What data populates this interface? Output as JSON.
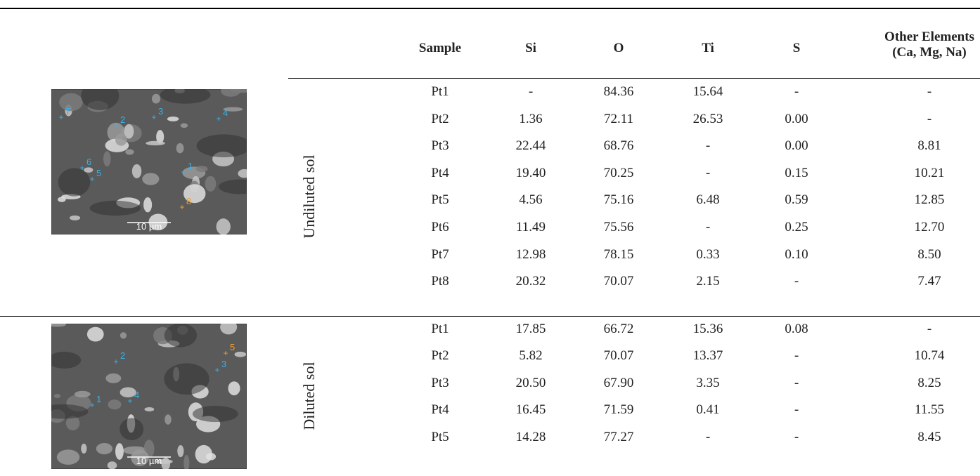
{
  "table": {
    "header": [
      "Sample",
      "Si",
      "O",
      "Ti",
      "S",
      "Other Elements (Ca, Mg, Na)"
    ],
    "groups": [
      {
        "label": "Undiluted sol",
        "image": {
          "scale": "10 µm",
          "points": [
            "1",
            "2",
            "3",
            "4",
            "5",
            "6",
            "7",
            "8"
          ]
        },
        "rows": [
          [
            "Pt1",
            "-",
            "84.36",
            "15.64",
            "-",
            "-"
          ],
          [
            "Pt2",
            "1.36",
            "72.11",
            "26.53",
            "0.00",
            "-"
          ],
          [
            "Pt3",
            "22.44",
            "68.76",
            "-",
            "0.00",
            "8.81"
          ],
          [
            "Pt4",
            "19.40",
            "70.25",
            "-",
            "0.15",
            "10.21"
          ],
          [
            "Pt5",
            "4.56",
            "75.16",
            "6.48",
            "0.59",
            "12.85"
          ],
          [
            "Pt6",
            "11.49",
            "75.56",
            "-",
            "0.25",
            "12.70"
          ],
          [
            "Pt7",
            "12.98",
            "78.15",
            "0.33",
            "0.10",
            "8.50"
          ],
          [
            "Pt8",
            "20.32",
            "70.07",
            "2.15",
            "-",
            "7.47"
          ]
        ]
      },
      {
        "label": "Diluted sol",
        "image": {
          "scale": "10 µm",
          "points": [
            "1",
            "2",
            "3",
            "4",
            "5"
          ]
        },
        "rows": [
          [
            "Pt1",
            "17.85",
            "66.72",
            "15.36",
            "0.08",
            "-"
          ],
          [
            "Pt2",
            "5.82",
            "70.07",
            "13.37",
            "-",
            "10.74"
          ],
          [
            "Pt3",
            "20.50",
            "67.90",
            "3.35",
            "-",
            "8.25"
          ],
          [
            "Pt4",
            "16.45",
            "71.59",
            "0.41",
            "-",
            "11.55"
          ],
          [
            "Pt5",
            "14.28",
            "77.27",
            "-",
            "-",
            "8.45"
          ]
        ]
      }
    ]
  }
}
